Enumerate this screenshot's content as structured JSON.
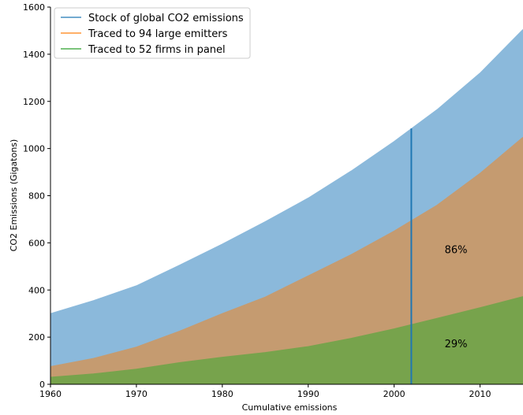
{
  "chart_data": {
    "type": "area",
    "xlabel": "Cumulative emissions",
    "ylabel": "CO2 Emissions (Gigatons)",
    "xlim": [
      1960,
      2015
    ],
    "ylim": [
      0,
      1600
    ],
    "xticks": [
      1960,
      1970,
      1980,
      1990,
      2000,
      2010
    ],
    "yticks": [
      0,
      200,
      400,
      600,
      800,
      1000,
      1200,
      1400,
      1600
    ],
    "legend_position": "top-left",
    "x": [
      1960,
      1965,
      1970,
      1975,
      1980,
      1985,
      1990,
      1995,
      2000,
      2005,
      2010,
      2015
    ],
    "series": [
      {
        "name": "Stock of global CO2 emissions",
        "color": "#1f77b4",
        "fill": "#8bb9db",
        "values": [
          300,
          355,
          418,
          505,
          595,
          690,
          790,
          905,
          1030,
          1165,
          1320,
          1505
        ]
      },
      {
        "name": "Traced to 94 large emitters",
        "color": "#ff7f0e",
        "fill": "#c59b70",
        "values": [
          75,
          110,
          158,
          225,
          300,
          370,
          460,
          550,
          650,
          760,
          895,
          1048
        ]
      },
      {
        "name": "Traced to 52 firms in panel",
        "color": "#2ca02c",
        "fill": "#77a34c",
        "values": [
          30,
          44,
          64,
          92,
          115,
          135,
          160,
          195,
          235,
          280,
          325,
          372
        ]
      }
    ],
    "vline": {
      "x": 2002,
      "y_top": 1085,
      "color": "#1f77b4"
    },
    "annotations": [
      {
        "text": "86%",
        "x": 2007.2,
        "y": 570
      },
      {
        "text": "29%",
        "x": 2007.2,
        "y": 170
      }
    ]
  }
}
